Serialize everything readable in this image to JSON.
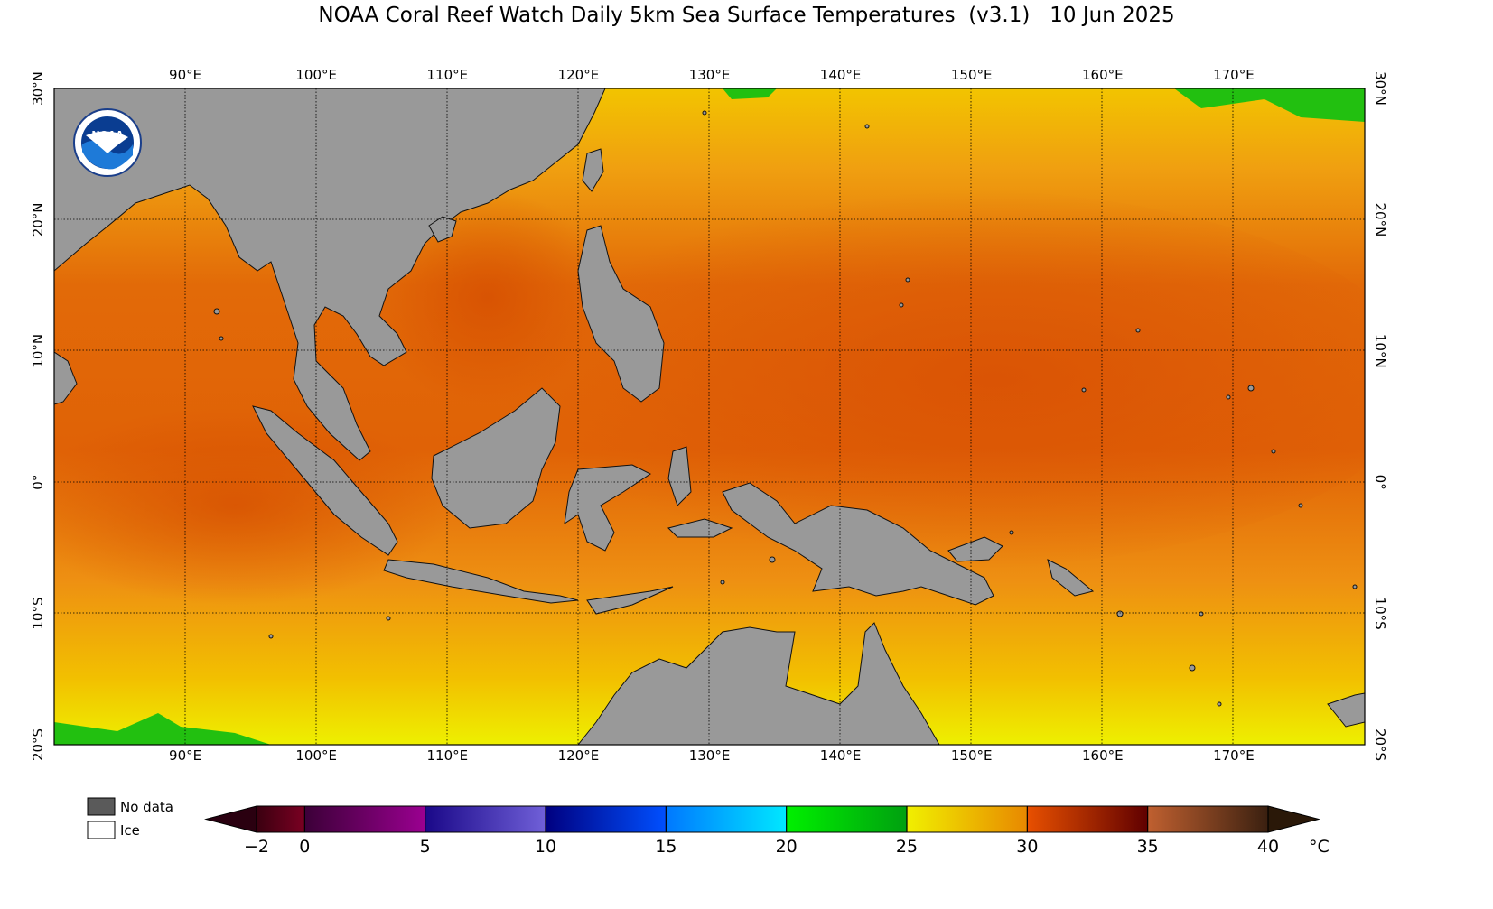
{
  "title": "NOAA Coral Reef Watch Daily 5km Sea Surface Temperatures  (v3.1)   10 Jun 2025",
  "logo_text": "NOAA",
  "map": {
    "lon_range": [
      80,
      180
    ],
    "lat_range": [
      -20,
      30
    ],
    "lon_ticks": [
      {
        "value": 90,
        "label": "90°E"
      },
      {
        "value": 100,
        "label": "100°E"
      },
      {
        "value": 110,
        "label": "110°E"
      },
      {
        "value": 120,
        "label": "120°E"
      },
      {
        "value": 130,
        "label": "130°E"
      },
      {
        "value": 140,
        "label": "140°E"
      },
      {
        "value": 150,
        "label": "150°E"
      },
      {
        "value": 160,
        "label": "160°E"
      },
      {
        "value": 170,
        "label": "170°E"
      }
    ],
    "lat_ticks": [
      {
        "value": 30,
        "label": "30°N"
      },
      {
        "value": 20,
        "label": "20°N"
      },
      {
        "value": 10,
        "label": "10°N"
      },
      {
        "value": 0,
        "label": "0°"
      },
      {
        "value": -10,
        "label": "10°S"
      },
      {
        "value": -20,
        "label": "20°S"
      }
    ],
    "land_color": "#999999",
    "ocean_base_color": "#ee8a10"
  },
  "legend": {
    "no_data": "No data",
    "ice": "Ice",
    "no_data_color": "#5a5a5a",
    "ice_color": "#ffffff"
  },
  "colorbar": {
    "unit": "°C",
    "tick_labels": [
      "−2",
      "0",
      "5",
      "10",
      "15",
      "20",
      "25",
      "30",
      "35",
      "40"
    ],
    "tick_values": [
      -2,
      0,
      5,
      10,
      15,
      20,
      25,
      30,
      35,
      40
    ],
    "segments": [
      {
        "from": -2,
        "to": 0,
        "colors": [
          "#3a0010",
          "#7a0022"
        ]
      },
      {
        "from": 0,
        "to": 5,
        "colors": [
          "#3c0038",
          "#9a0090"
        ]
      },
      {
        "from": 5,
        "to": 10,
        "colors": [
          "#1a0888",
          "#7060d8"
        ]
      },
      {
        "from": 10,
        "to": 15,
        "colors": [
          "#000080",
          "#0050ff"
        ]
      },
      {
        "from": 15,
        "to": 20,
        "colors": [
          "#0078ff",
          "#00e8ff"
        ]
      },
      {
        "from": 20,
        "to": 25,
        "colors": [
          "#00f000",
          "#00a010"
        ]
      },
      {
        "from": 25,
        "to": 30,
        "colors": [
          "#f0f000",
          "#e88800"
        ]
      },
      {
        "from": 30,
        "to": 35,
        "colors": [
          "#e85000",
          "#600000"
        ]
      },
      {
        "from": 35,
        "to": 40,
        "colors": [
          "#c06030",
          "#3a2010"
        ]
      }
    ],
    "under_color": "#2a0010",
    "over_color": "#2a1808"
  }
}
